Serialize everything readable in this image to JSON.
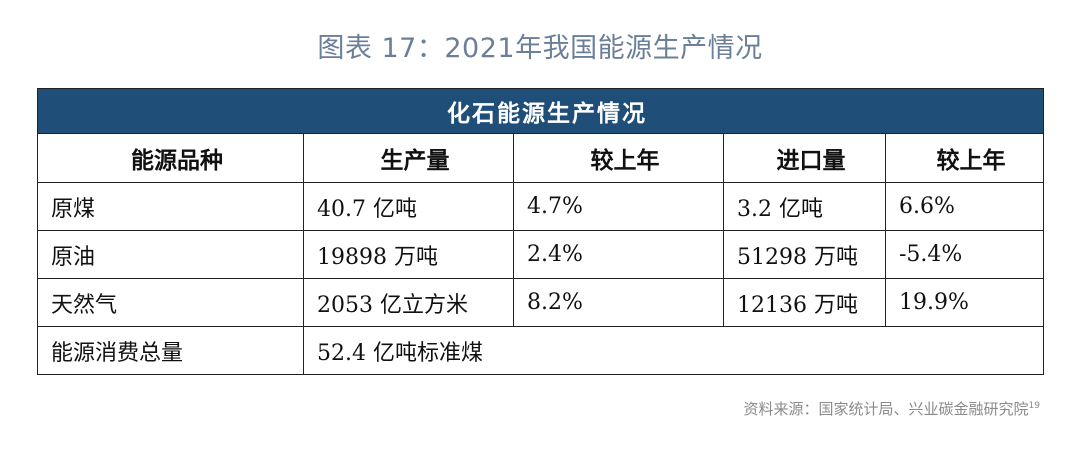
{
  "caption": "图表 17：2021年我国能源生产情况",
  "table": {
    "banner": "化石能源生产情况",
    "headers": [
      "能源品种",
      "生产量",
      "较上年",
      "进口量",
      "较上年"
    ],
    "rows": [
      {
        "name": "原煤",
        "production": "40.7 亿吨",
        "prod_yoy": "4.7%",
        "imports": "3.2 亿吨",
        "imp_yoy": "6.6%"
      },
      {
        "name": "原油",
        "production": "19898 万吨",
        "prod_yoy": "2.4%",
        "imports": "51298 万吨",
        "imp_yoy": "-5.4%"
      },
      {
        "name": "天然气",
        "production": "2053 亿立方米",
        "prod_yoy": "8.2%",
        "imports": "12136 万吨",
        "imp_yoy": "19.9%"
      }
    ],
    "total": {
      "label": "能源消费总量",
      "value": "52.4 亿吨标准煤"
    }
  },
  "source": {
    "text": "资料来源：国家统计局、兴业碳金融研究院",
    "footnote": "19"
  }
}
